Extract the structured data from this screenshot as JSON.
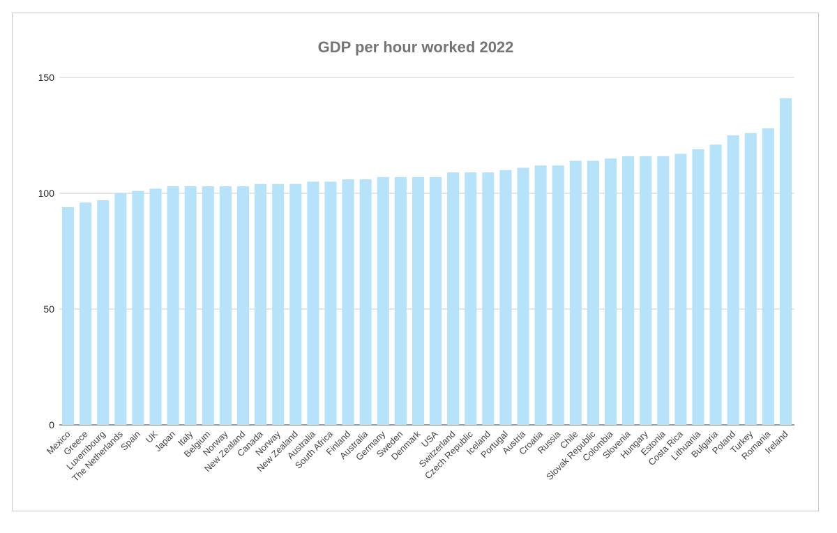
{
  "chart_data": {
    "type": "bar",
    "title": "GDP per hour worked 2022",
    "xlabel": "",
    "ylabel": "",
    "ylim": [
      0,
      150
    ],
    "yticks": [
      "0",
      "50",
      "100",
      "150"
    ],
    "grid": true,
    "legend": "none",
    "bar_color": "#b6e3fa",
    "categories": [
      "Mexico",
      "Greece",
      "Luxembourg",
      "The Netherlands",
      "Spain",
      "UK",
      "Japan",
      "Italy",
      "Belgium",
      "Norway",
      "New Zealand",
      "Canada",
      "Norway",
      "New Zealand",
      "Australia",
      "South Africa",
      "Finland",
      "Australia",
      "Germany",
      "Sweden",
      "Denmark",
      "USA",
      "Switzerland",
      "Czech Republic",
      "Iceland",
      "Portugal",
      "Austria",
      "Croatia",
      "Russia",
      "Chile",
      "Slovak Republic",
      "Colombia",
      "Slovenia",
      "Hungary",
      "Estonia",
      "Costa Rica",
      "Lithuania",
      "Bulgaria",
      "Poland",
      "Turkey",
      "Romania",
      "Ireland"
    ],
    "values": [
      94,
      96,
      97,
      100,
      101,
      102,
      103,
      103,
      103,
      103,
      103,
      104,
      104,
      104,
      105,
      105,
      106,
      106,
      107,
      107,
      107,
      107,
      109,
      109,
      109,
      110,
      111,
      112,
      112,
      114,
      114,
      115,
      116,
      116,
      116,
      117,
      119,
      121,
      125,
      126,
      128,
      141
    ]
  }
}
